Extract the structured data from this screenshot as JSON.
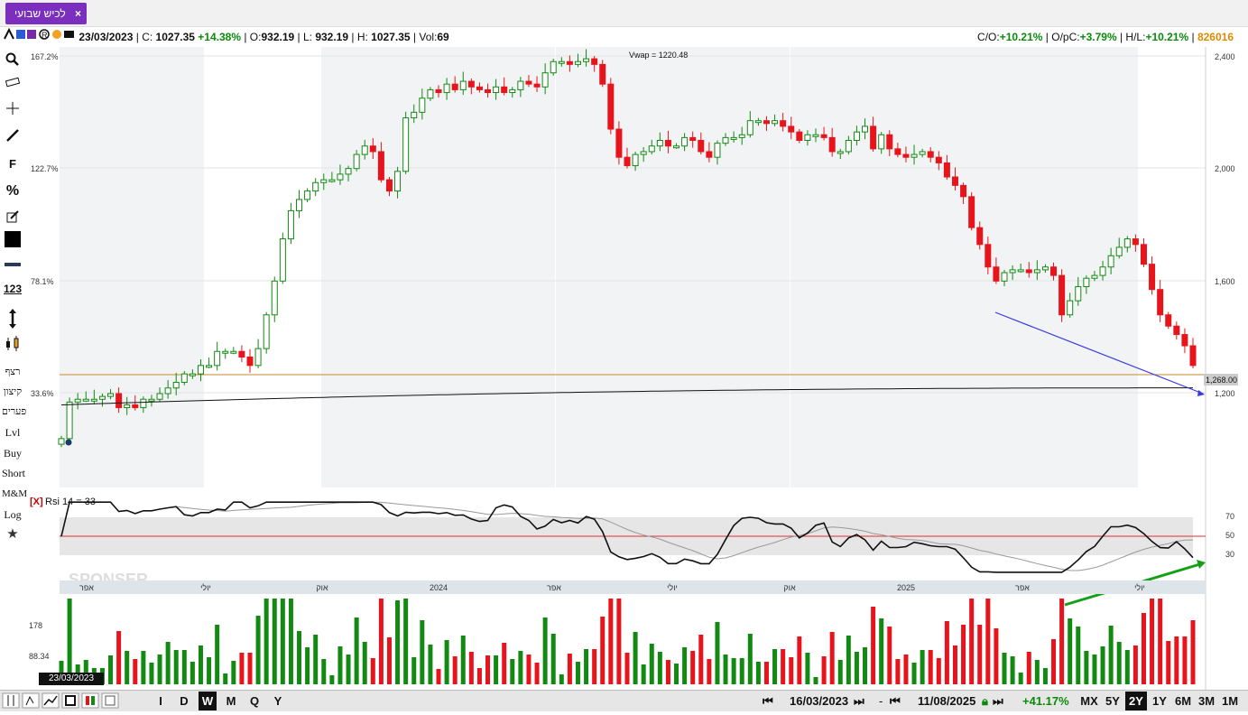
{
  "tab": {
    "title": "לכיש שבועי",
    "close": "×"
  },
  "info": {
    "date": "23/03/2023",
    "c_label": "C:",
    "c_value": "1027.35",
    "c_change": "+14.38%",
    "o_label": "O:",
    "o_value": "932.19",
    "l_label": "L:",
    "l_value": "932.19",
    "h_label": "H:",
    "h_value": "1027.35",
    "vol_label": "Vol:",
    "vol_value": "69",
    "co_label": "C/O:",
    "co_value": "+10.21%",
    "opc_label": "O/pC:",
    "opc_value": "+3.79%",
    "hl_label": "H/L:",
    "hl_value": "+10.21%",
    "symbol_id": "826016"
  },
  "sidebar": {
    "tools": [
      "search-icon",
      "ruler-icon",
      "crosshair-icon",
      "line-icon",
      "fib-icon",
      "percent-icon",
      "edit-icon",
      "color-box-icon",
      "thickness-icon",
      "number-icon",
      "arrow-vertical-icon",
      "candles-icon"
    ],
    "fib_text": "F",
    "percent_text": "%",
    "num_text": "123",
    "texts": [
      "רצף",
      "קיצון",
      "פערים",
      "Lvl",
      "Buy",
      "Short",
      "M&M",
      "Log"
    ],
    "star": "★"
  },
  "chart": {
    "vwap_label": "Vwap  = 1220.48",
    "left_axis": [
      "167.2%",
      "122.7%",
      "78.1%",
      "33.6%"
    ],
    "right_axis": [
      "2,400",
      "2,000",
      "1,600",
      "1,200"
    ],
    "price_marker": "1,268.00",
    "rsi_label": "Rsi 14 = 33",
    "rsi_close": "[X]",
    "rsi_axis": [
      "70",
      "50",
      "30"
    ],
    "time_axis": [
      "אפר",
      "יולי",
      "אוק",
      "2024",
      "אפר",
      "יולי",
      "אוק",
      "2025",
      "אפר",
      "יולי"
    ],
    "vol_axis": [
      "178",
      "88.34"
    ],
    "watermark": "SPONSER",
    "colors": {
      "up": "#128a12",
      "down": "#e8141c",
      "hline": "#c98a2a",
      "trend": "#3a3ae0",
      "arrow": "#16a016"
    }
  },
  "chart_data": {
    "type": "candlestick",
    "price_axis": {
      "min": 1200,
      "max": 2400,
      "ticks": [
        1200,
        1600,
        2000,
        2400
      ]
    },
    "rsi_levels": [
      70,
      50,
      30
    ],
    "horizontal_line": 1268,
    "vwap": 1220.48,
    "candles_approx_close": [
      1040,
      1170,
      1180,
      1180,
      1180,
      1190,
      1200,
      1150,
      1160,
      1150,
      1180,
      1180,
      1200,
      1220,
      1240,
      1270,
      1270,
      1300,
      1300,
      1350,
      1350,
      1350,
      1330,
      1300,
      1360,
      1480,
      1600,
      1750,
      1850,
      1890,
      1920,
      1950,
      1960,
      1960,
      1980,
      2000,
      2050,
      2080,
      2060,
      1960,
      1920,
      1990,
      2180,
      2200,
      2250,
      2280,
      2270,
      2300,
      2280,
      2310,
      2290,
      2280,
      2270,
      2290,
      2270,
      2280,
      2310,
      2300,
      2290,
      2340,
      2380,
      2380,
      2370,
      2380,
      2390,
      2370,
      2300,
      2140,
      2040,
      2010,
      2050,
      2060,
      2080,
      2100,
      2080,
      2080,
      2110,
      2100,
      2060,
      2040,
      2090,
      2110,
      2110,
      2120,
      2170,
      2170,
      2160,
      2170,
      2150,
      2130,
      2100,
      2120,
      2120,
      2110,
      2060,
      2060,
      2100,
      2130,
      2150,
      2070,
      2120,
      2070,
      2050,
      2040,
      2050,
      2060,
      2040,
      2020,
      1970,
      1940,
      1900,
      1790,
      1730,
      1650,
      1600,
      1630,
      1640,
      1640,
      1630,
      1640,
      1650,
      1620,
      1480,
      1530,
      1580,
      1610,
      1620,
      1650,
      1690,
      1720,
      1750,
      1730,
      1660,
      1570,
      1480,
      1440,
      1410,
      1370,
      1300
    ]
  },
  "volume": {
    "first_bar_label": "23/03/2023"
  },
  "bottom": {
    "from_date": "16/03/2023",
    "to_date": "11/08/2025",
    "change": "+41.17%",
    "periods": [
      "MX",
      "5Y",
      "2Y",
      "1Y",
      "6M",
      "3M",
      "1M"
    ],
    "selected_period": "2Y",
    "intervals": [
      "I",
      "D",
      "W",
      "M",
      "Q",
      "Y"
    ],
    "selected_interval": "W",
    "nav_first": "⏮",
    "nav_last": "⏭",
    "dash": "-"
  }
}
